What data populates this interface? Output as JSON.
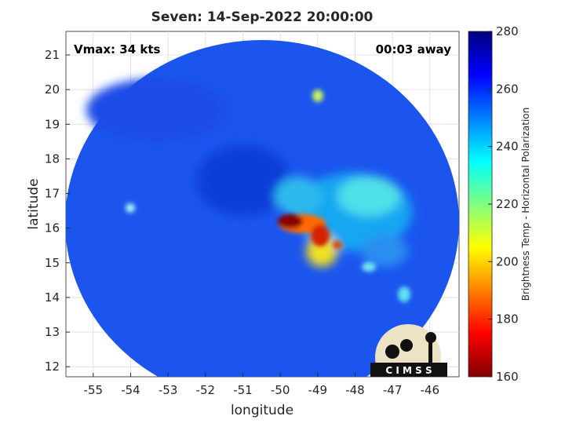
{
  "chart_data": {
    "type": "image",
    "title": "Seven: 14-Sep-2022 20:00:00",
    "annotations": [
      "Vmax: 34 kts",
      "00:03 away"
    ],
    "x_label": "longitude",
    "y_label": "latitude",
    "xlim": [
      -55.73,
      -45.22
    ],
    "xticks": [
      -55,
      -54,
      -53,
      -52,
      -51,
      -50,
      -49,
      -48,
      -47,
      -46
    ],
    "ylim": [
      11.71,
      21.68
    ],
    "yticks": [
      12,
      13,
      14,
      15,
      16,
      17,
      18,
      19,
      20,
      21
    ],
    "grid": true,
    "colorbar": {
      "label": "Brightness Temp - Horizontal Polarization",
      "lim": [
        160,
        280
      ],
      "ticks": [
        160,
        180,
        200,
        220,
        240,
        260,
        280
      ]
    },
    "logo": "C I M S S"
  }
}
